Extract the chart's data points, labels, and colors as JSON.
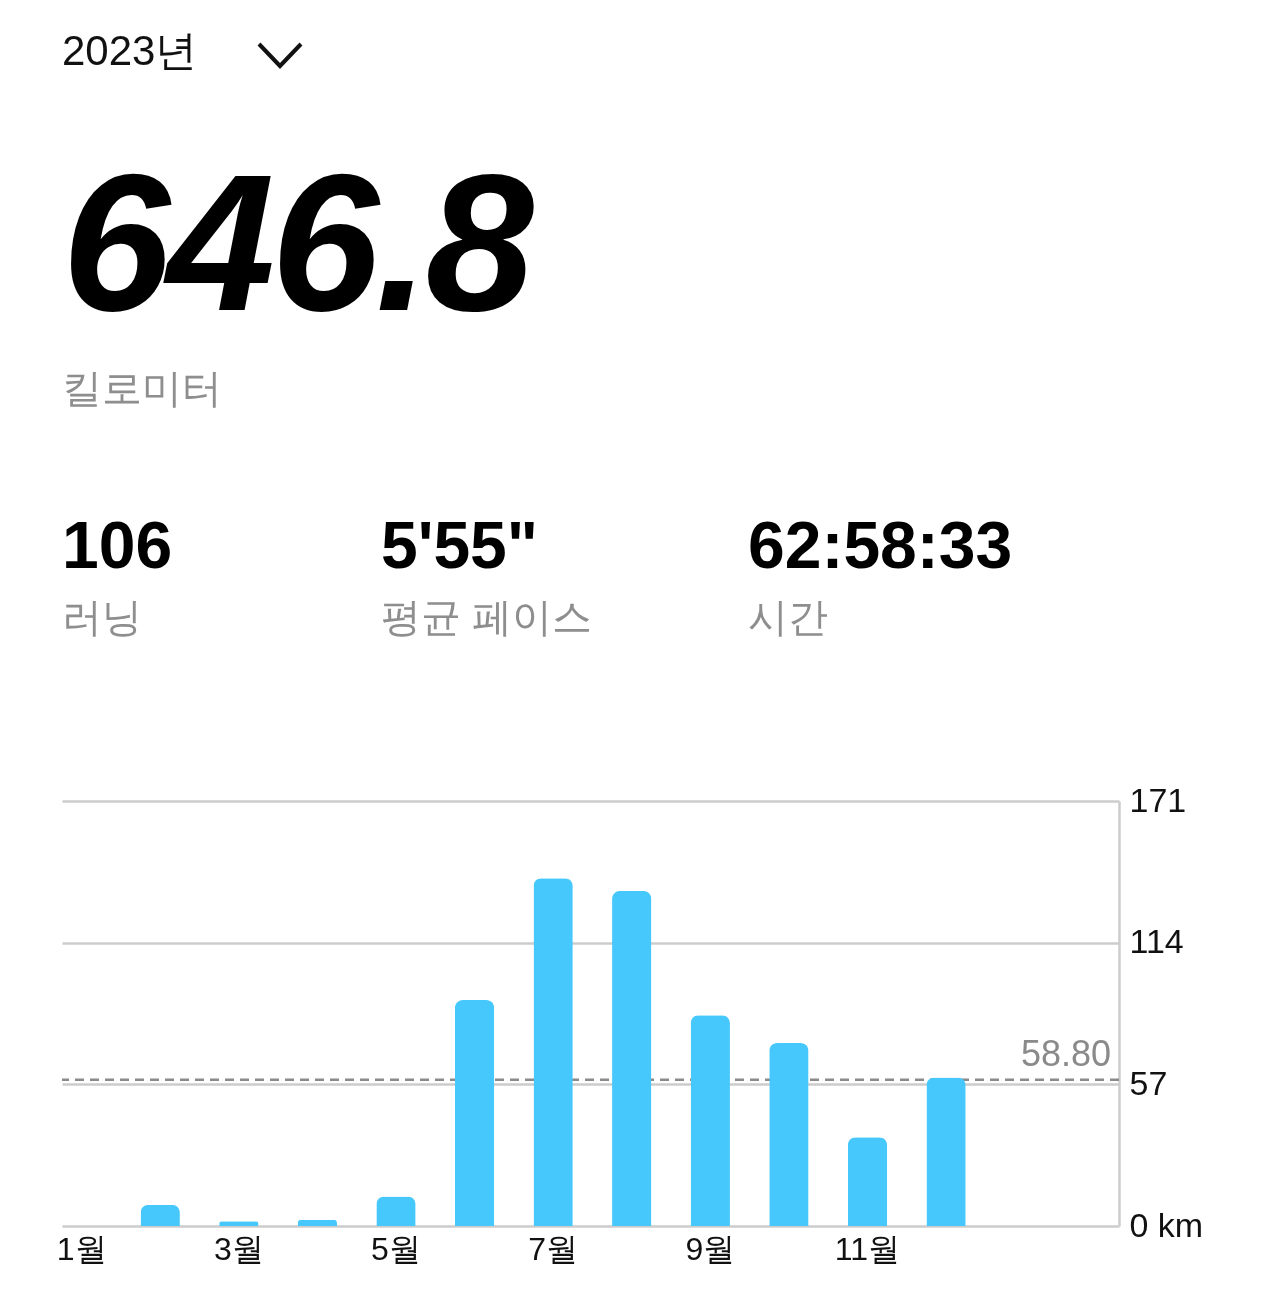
{
  "chart_data": {
    "type": "bar",
    "title": "2023년",
    "annotations": [
      "646.8",
      "킬로미터",
      "106",
      "러닝",
      "5'55\"",
      "평균 페이스",
      "62:58:33",
      "시간"
    ],
    "categories": [
      "1월",
      null,
      "3월",
      null,
      "5월",
      null,
      "7월",
      null,
      "9월",
      null,
      "11월",
      null
    ],
    "values": [
      null,
      8.5,
      1.9,
      2.5,
      11.9,
      90.9,
      139.9,
      134.8,
      84.8,
      73.6,
      35.7,
      59.7
    ],
    "color": "#46c8fd",
    "ylim": [
      0,
      171
    ],
    "yticks": [
      {
        "value": 0,
        "label": "0 km"
      },
      57,
      114,
      171
    ],
    "grid": "y",
    "ref_lines": [
      {
        "axis": "y",
        "value": 58.8,
        "label": "58.80",
        "color": "#8a8a8a",
        "line_style": "dashed"
      }
    ]
  }
}
